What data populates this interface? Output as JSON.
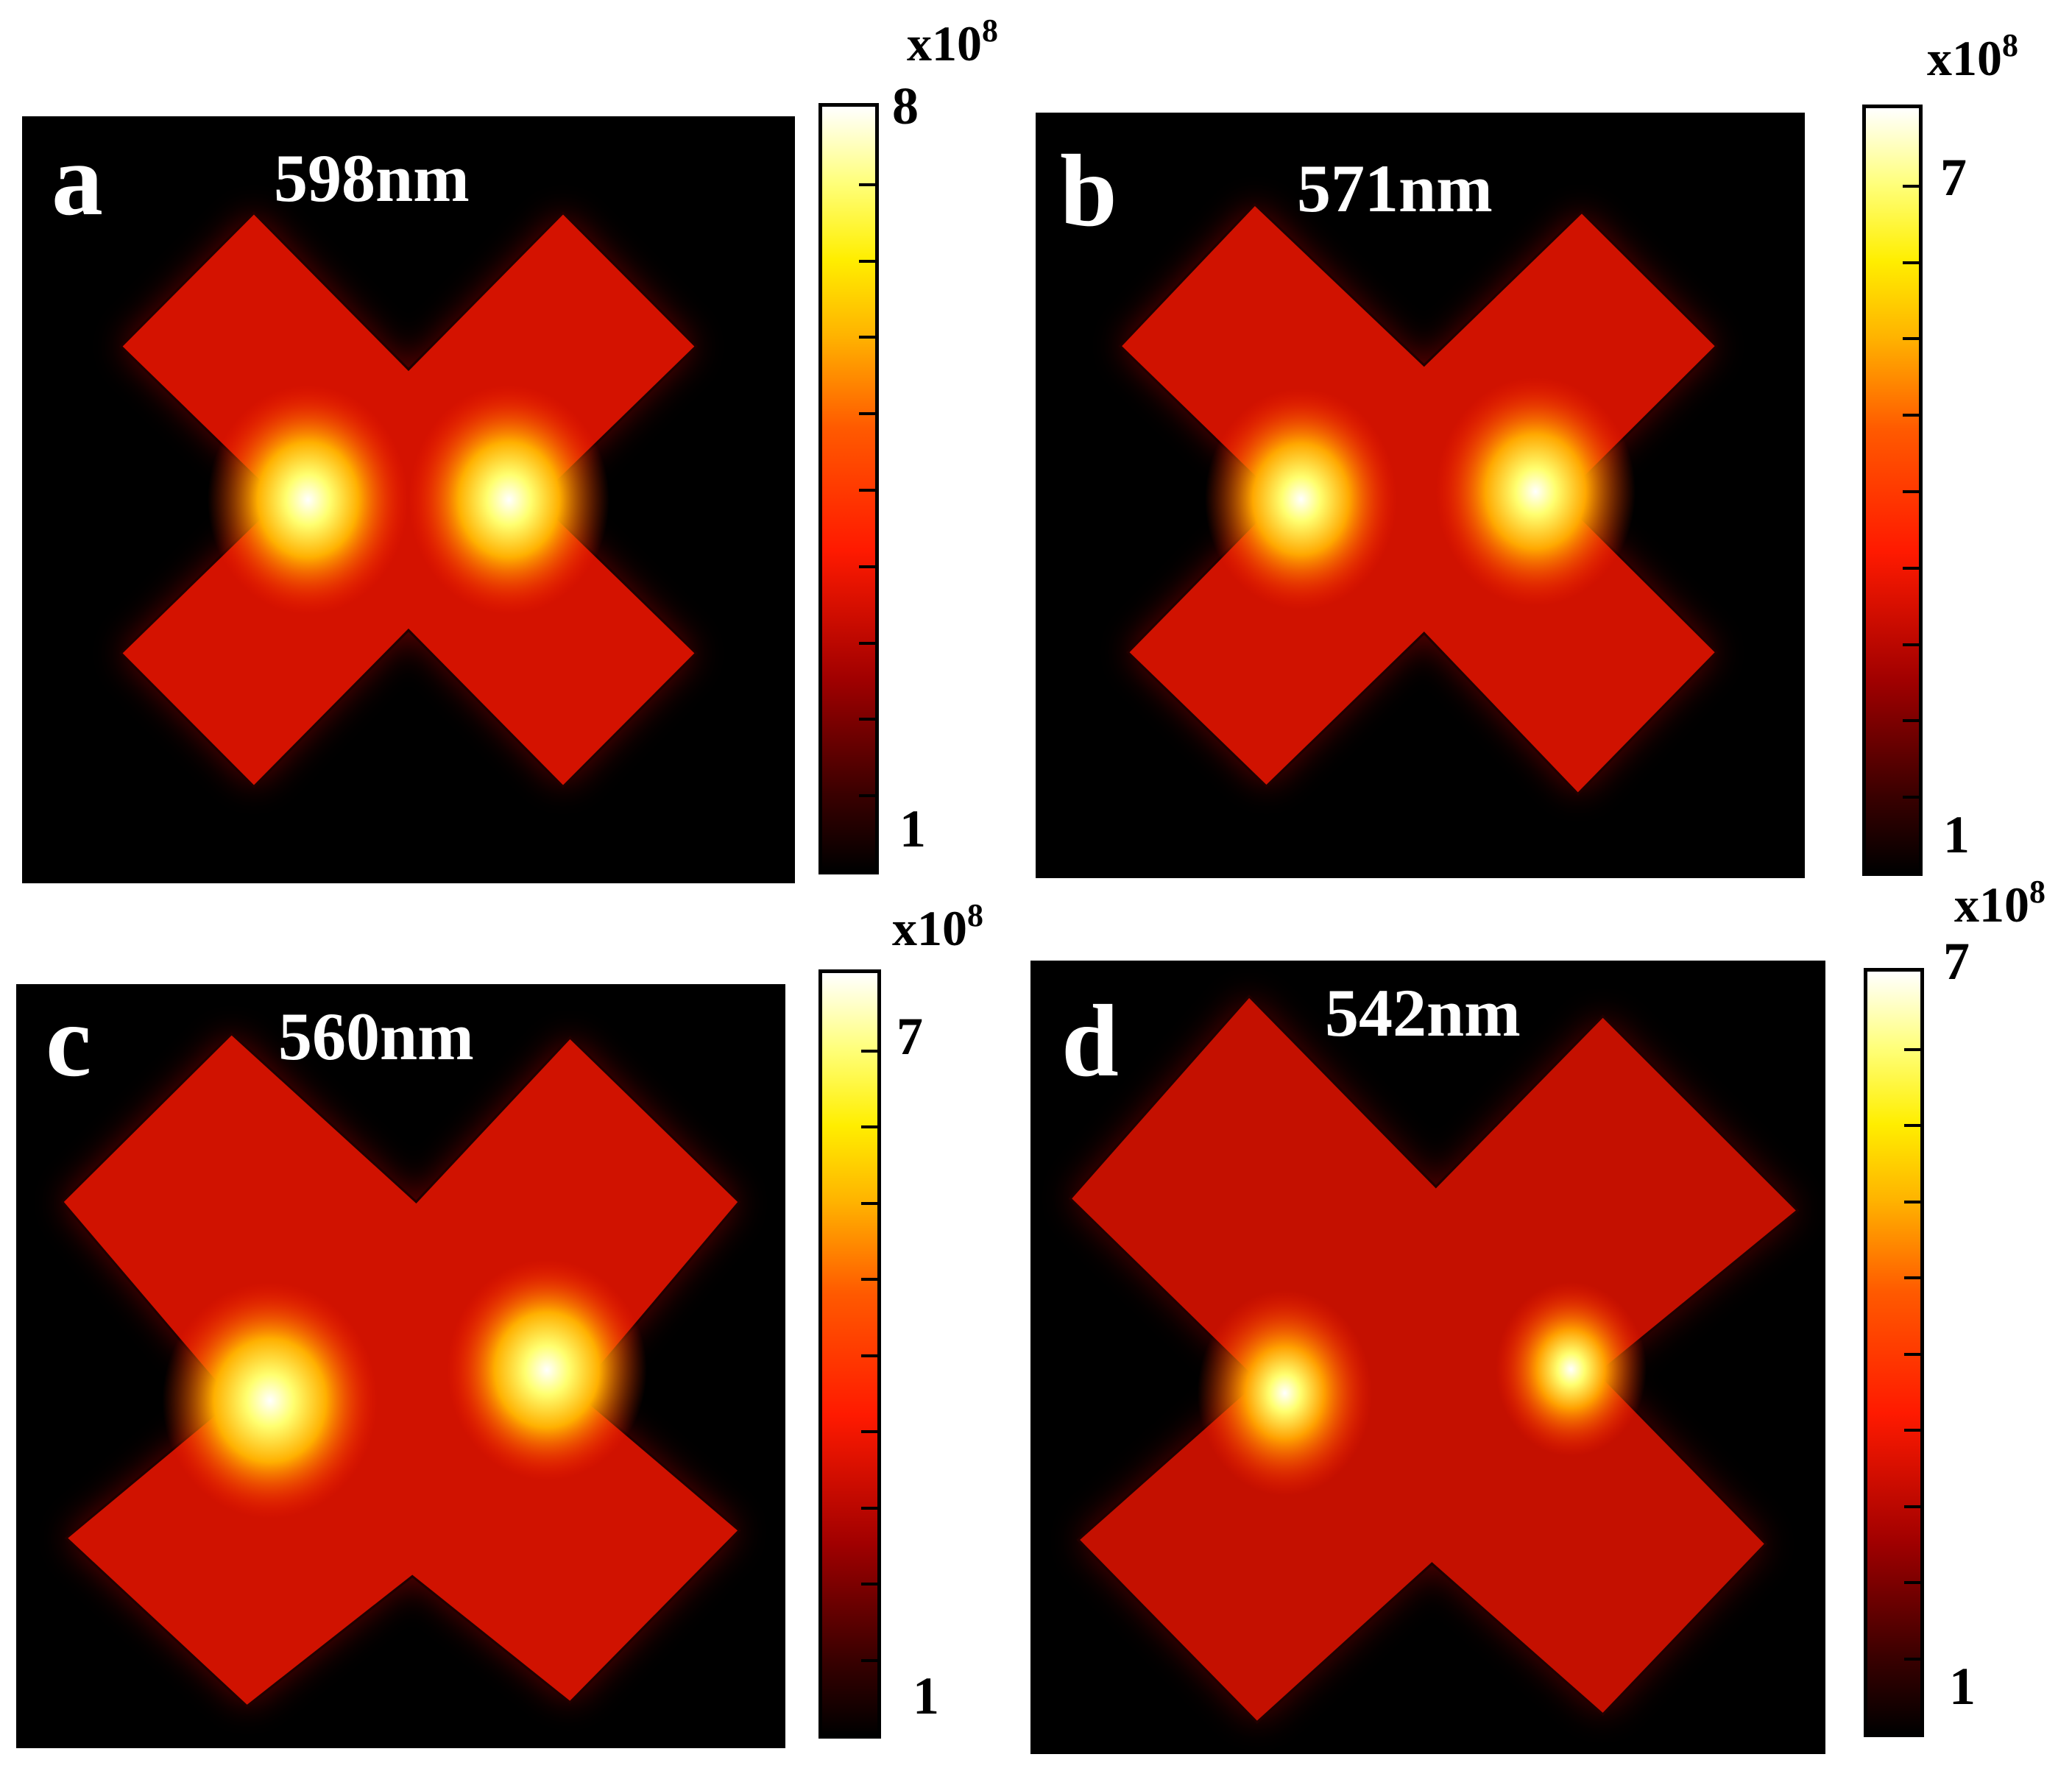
{
  "panels": [
    {
      "letter": "a",
      "wavelength": "598nm",
      "colorbar": {
        "max_label": "8",
        "min_label": "1",
        "scale_base": "x10",
        "scale_exp": "8"
      }
    },
    {
      "letter": "b",
      "wavelength": "571nm",
      "colorbar": {
        "max_label": "7",
        "min_label": "1",
        "scale_base": "x10",
        "scale_exp": "8"
      }
    },
    {
      "letter": "c",
      "wavelength": "560nm",
      "colorbar": {
        "max_label": "7",
        "min_label": "1",
        "scale_base": "x10",
        "scale_exp": "8"
      }
    },
    {
      "letter": "d",
      "wavelength": "542nm",
      "colorbar": {
        "max_label": "7",
        "min_label": "1",
        "scale_base": "x10",
        "scale_exp": "8"
      }
    }
  ],
  "colormap": [
    "#000000",
    "#a00000",
    "#ff1a00",
    "#ff7a00",
    "#ffee00",
    "#ffffff"
  ]
}
